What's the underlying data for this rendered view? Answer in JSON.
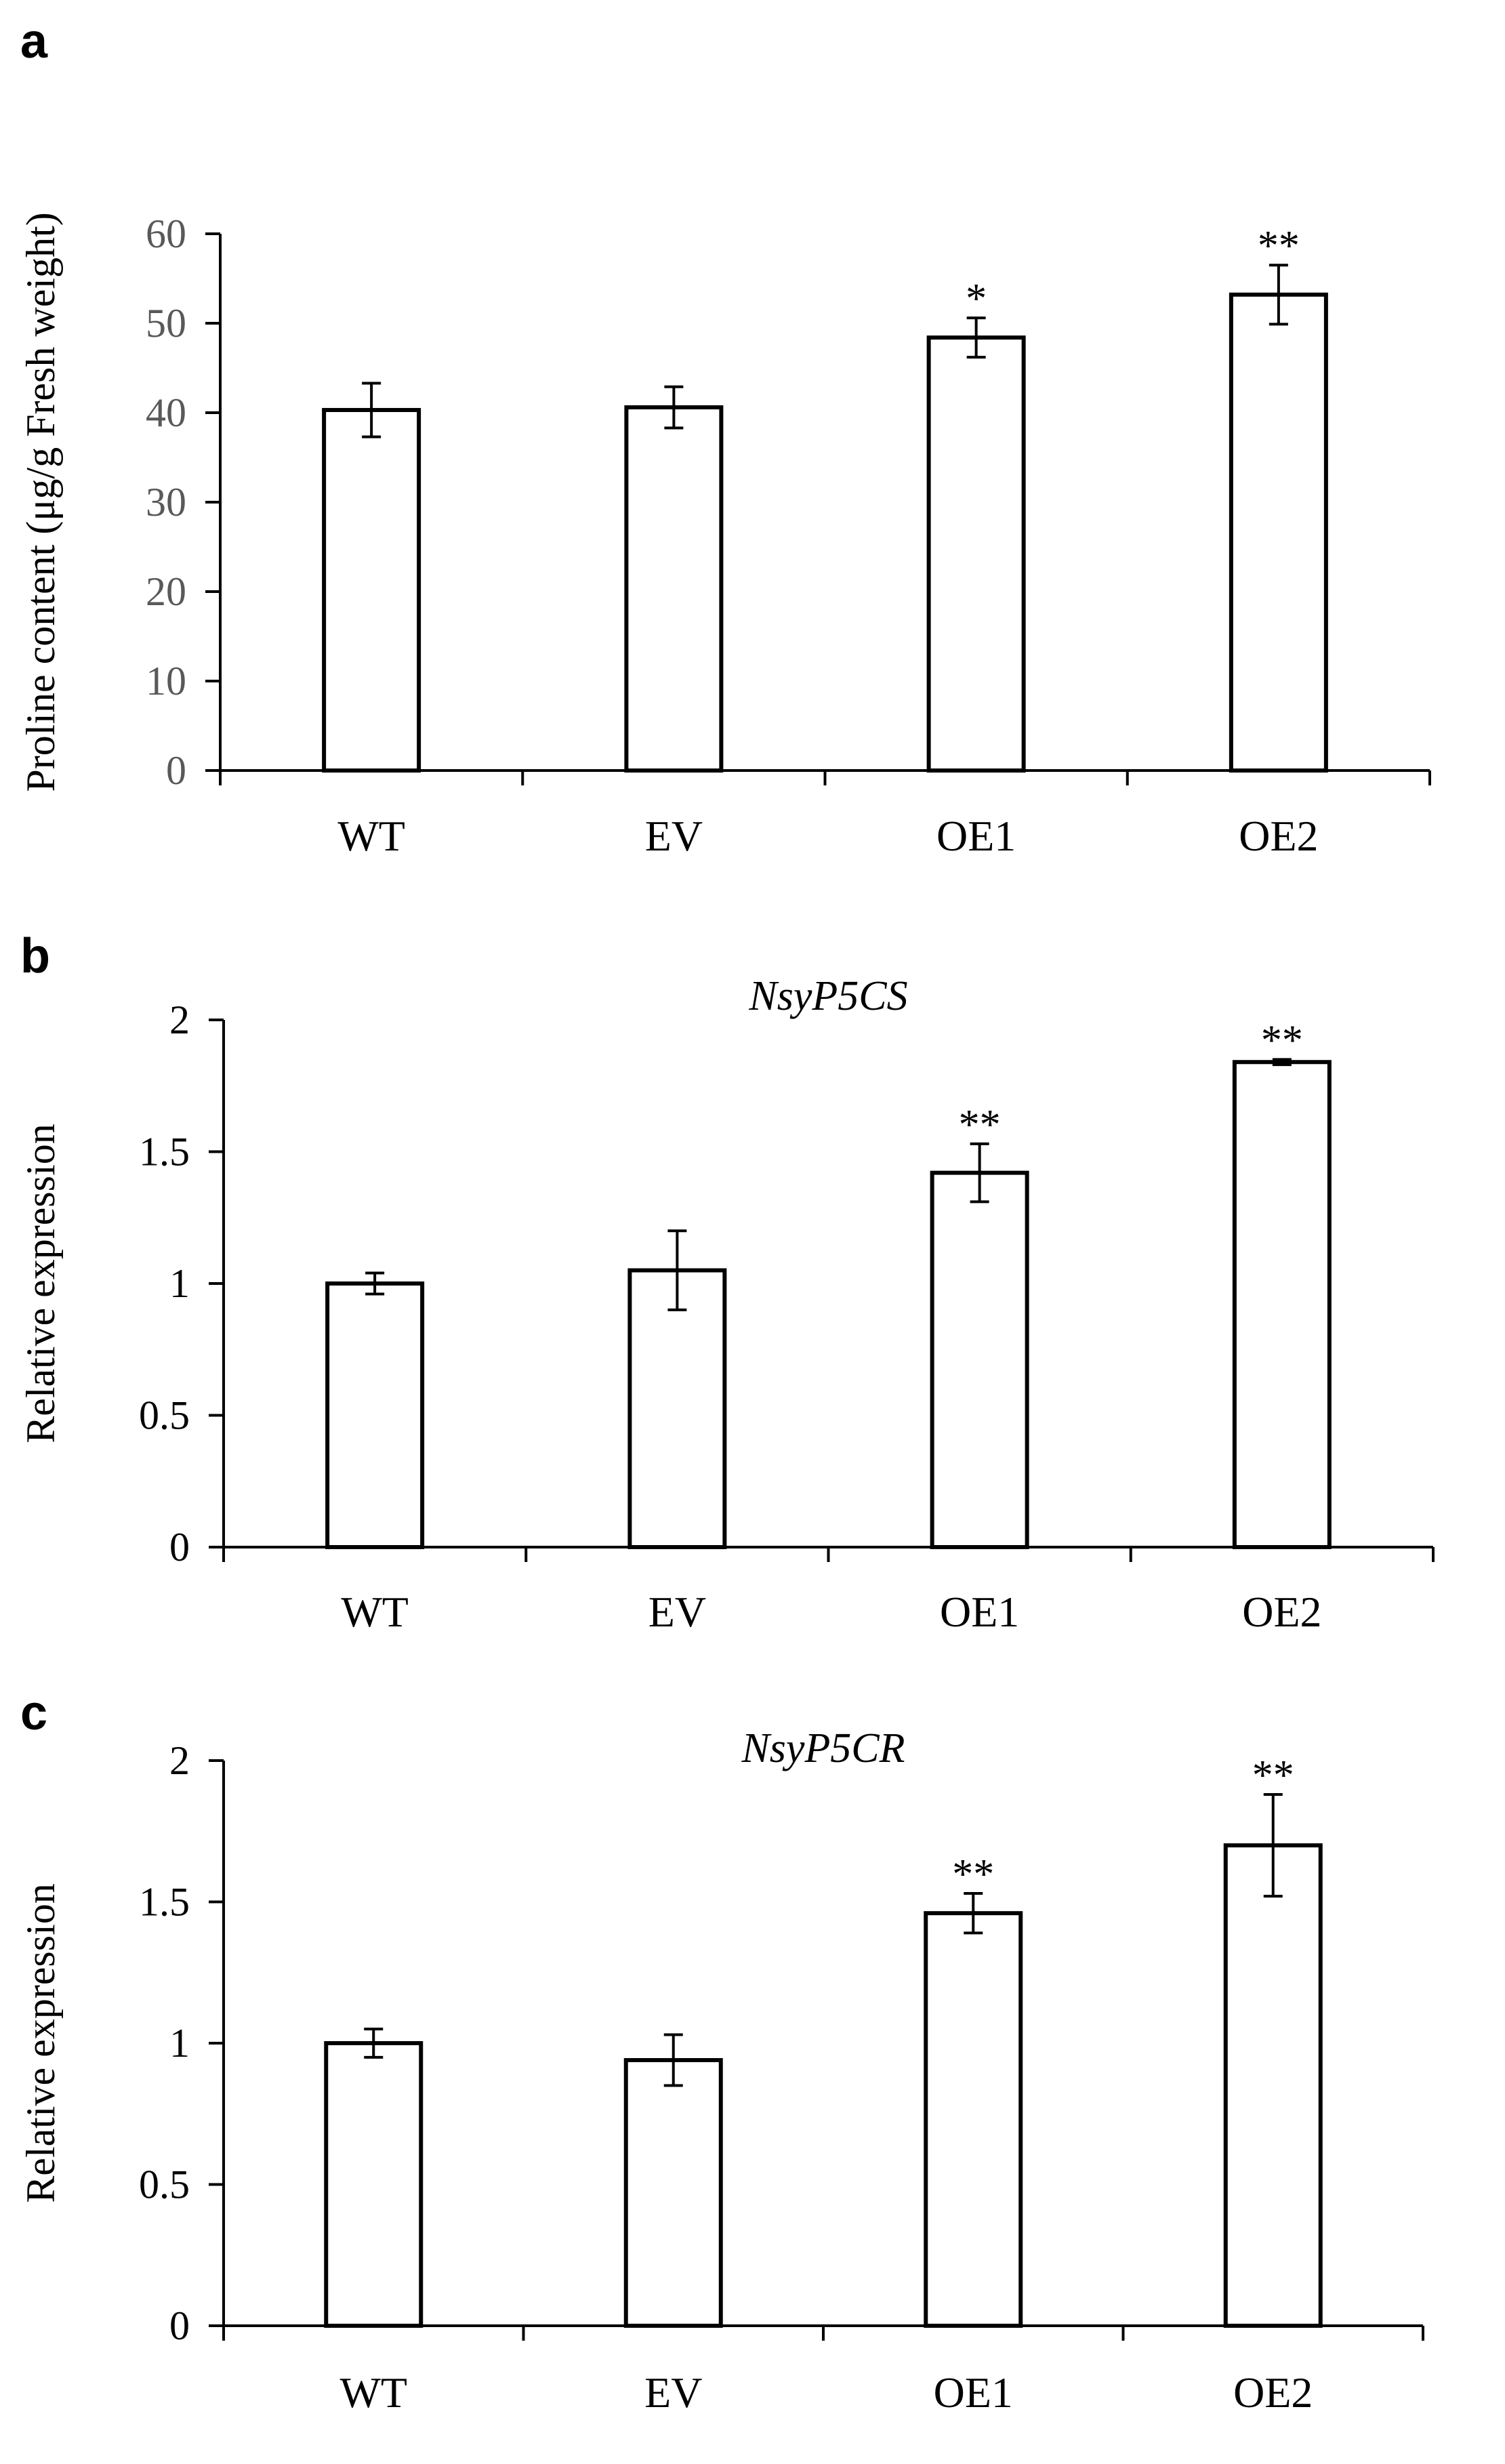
{
  "chart_data": [
    {
      "panel": "a",
      "type": "bar",
      "title": "",
      "xlabel": "",
      "ylabel": "Proline content (μg/g Fresh weight)",
      "categories": [
        "WT",
        "EV",
        "OE1",
        "OE2"
      ],
      "values": [
        40.3,
        40.6,
        48.4,
        53.2
      ],
      "errors": [
        3.0,
        2.3,
        2.2,
        3.3
      ],
      "significance": [
        "",
        "",
        "*",
        "**"
      ],
      "ylim": [
        0,
        60
      ],
      "yticks": [
        0,
        10,
        20,
        30,
        40,
        50,
        60
      ],
      "ytick_labels": [
        "0",
        "10",
        "20",
        "30",
        "40",
        "50",
        "60"
      ],
      "tick_color": "#595959",
      "bar_fill": "#ffffff",
      "bar_stroke": "#000000",
      "grid": false
    },
    {
      "panel": "b",
      "type": "bar",
      "title": "NsyP5CS",
      "xlabel": "",
      "ylabel": "Relative expression",
      "categories": [
        "WT",
        "EV",
        "OE1",
        "OE2"
      ],
      "values": [
        1.0,
        1.05,
        1.42,
        1.84
      ],
      "errors": [
        0.04,
        0.15,
        0.11,
        0.01
      ],
      "significance": [
        "",
        "",
        "**",
        "**"
      ],
      "ylim": [
        0,
        2
      ],
      "yticks": [
        0,
        0.5,
        1,
        1.5,
        2
      ],
      "ytick_labels": [
        "0",
        "0.5",
        "1",
        "1.5",
        "2"
      ],
      "tick_color": "#000000",
      "bar_fill": "#ffffff",
      "bar_stroke": "#000000",
      "grid": false
    },
    {
      "panel": "c",
      "type": "bar",
      "title": "NsyP5CR",
      "xlabel": "",
      "ylabel": "Relative expression",
      "categories": [
        "WT",
        "EV",
        "OE1",
        "OE2"
      ],
      "values": [
        1.0,
        0.94,
        1.46,
        1.7
      ],
      "errors": [
        0.05,
        0.09,
        0.07,
        0.18
      ],
      "significance": [
        "",
        "",
        "**",
        "**"
      ],
      "ylim": [
        0,
        2
      ],
      "yticks": [
        0,
        0.5,
        1,
        1.5,
        2
      ],
      "ytick_labels": [
        "0",
        "0.5",
        "1",
        "1.5",
        "2"
      ],
      "tick_color": "#000000",
      "bar_fill": "#ffffff",
      "bar_stroke": "#000000",
      "grid": false
    }
  ]
}
